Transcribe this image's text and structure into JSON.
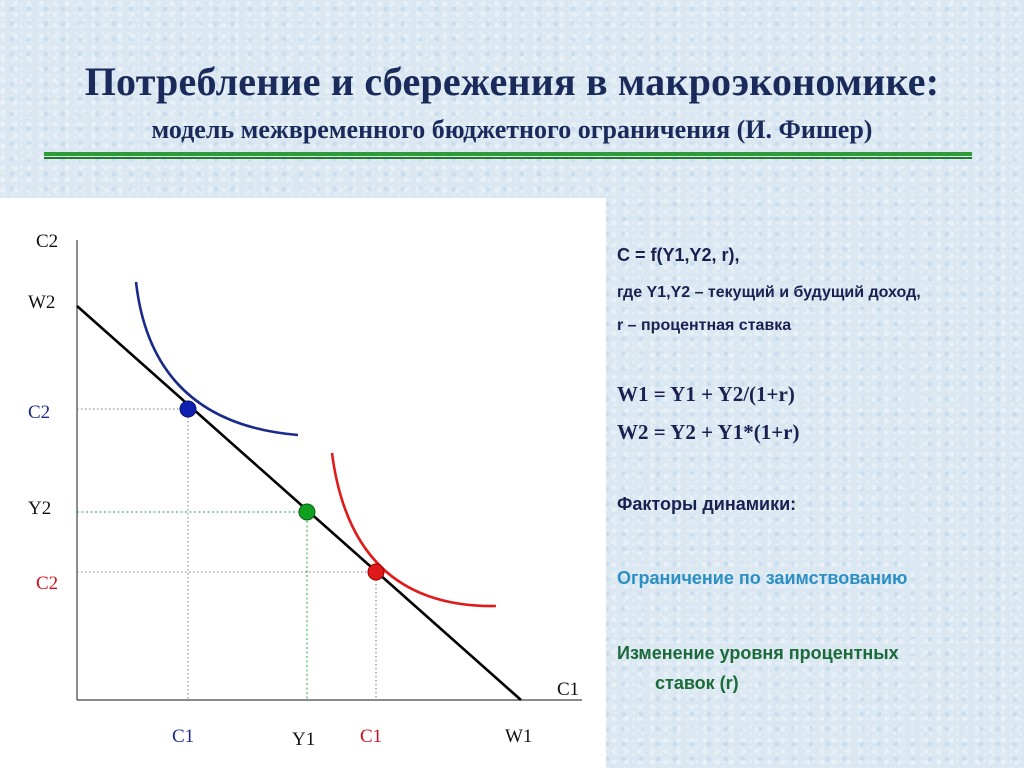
{
  "slide": {
    "title": "Потребление и сбережения в макроэкономике:",
    "subtitle": "модель межвременного бюджетного ограничения (И. Фишер)"
  },
  "diagram": {
    "axis_labels": {
      "c2_axis": "C2",
      "w2": "W2",
      "c2_blue": "C2",
      "y2": "Y2",
      "c2_red": "C2",
      "c1_axis": "C1",
      "c1_blue": "C1",
      "y1": "Y1",
      "c1_red": "C1",
      "w1": "W1"
    },
    "colors": {
      "budget_line": "#000000",
      "indifference_blue": "#1a2a8a",
      "indifference_red": "#e01a1a",
      "point_blue": "#1020b0",
      "point_green": "#10a020",
      "point_red": "#e01a1a"
    }
  },
  "sidebar": {
    "formula_c": "C = f(Y1,Y2, r),",
    "where_text": "где Y1,Y2 – текущий и будущий доход,",
    "r_text": "r – процентная ставка",
    "w1_formula": "W1 = Y1 + Y2/(1+r)",
    "w2_formula": "W2 = Y2 + Y1*(1+r)",
    "factors_heading": "Факторы динамики:",
    "factor_1": "Ограничение по заимствованию",
    "factor_2_line1": "Изменение уровня процентных",
    "factor_2_line2": "ставок (r)"
  }
}
